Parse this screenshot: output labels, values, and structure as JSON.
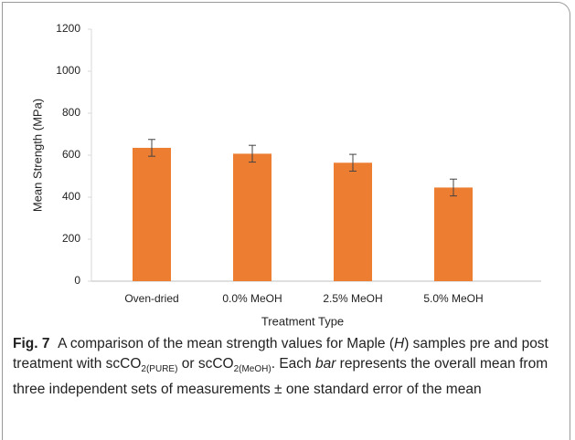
{
  "chart_data": {
    "type": "bar",
    "categories": [
      "Oven-dried",
      "0.0% MeOH",
      "2.5% MeOH",
      "5.0% MeOH"
    ],
    "values": [
      635,
      607,
      564,
      446
    ],
    "errors": [
      40,
      40,
      40,
      40
    ],
    "color": "#ed7d31",
    "ylim": [
      0,
      1200
    ],
    "yticks": [
      0,
      200,
      400,
      600,
      800,
      1000,
      1200
    ],
    "xlabel": "Treatment Type",
    "ylabel": "Mean Strength (MPa)",
    "caption": {
      "label": "Fig. 7",
      "parts": [
        "A comparison of the mean strength values for Maple (",
        "H",
        ") samples pre and post treatment with scCO",
        "2(PURE)",
        " or scCO",
        "2(MeOH)",
        ". Each ",
        "bar",
        " represents the overall mean from three independent sets of measurements ± one standard error of the mean"
      ]
    }
  }
}
